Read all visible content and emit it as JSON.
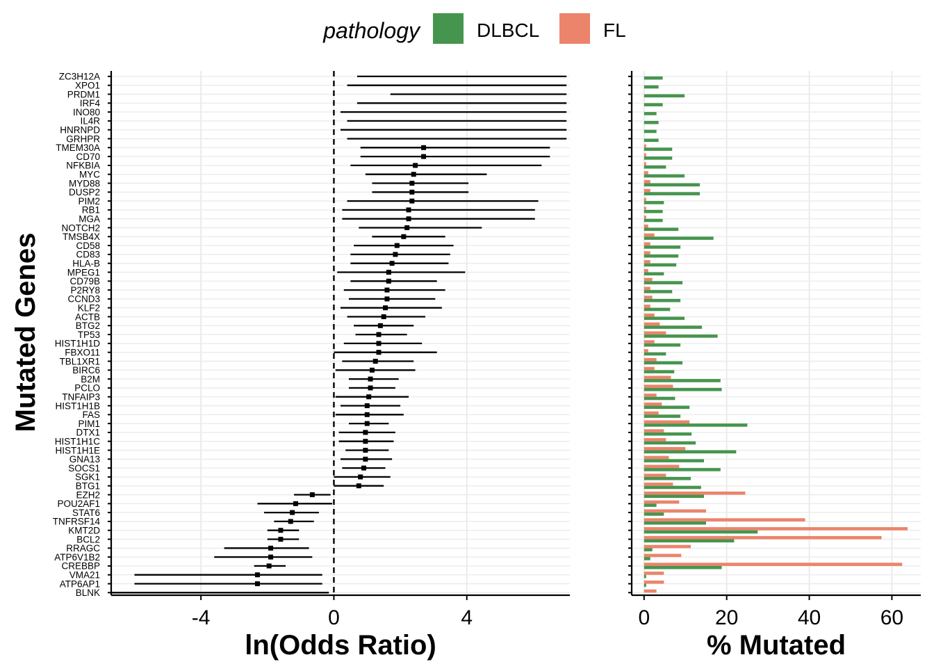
{
  "legend": {
    "title": "pathology",
    "items": [
      {
        "label": "DLBCL",
        "color": "#46954E"
      },
      {
        "label": "FL",
        "color": "#EB846B"
      }
    ]
  },
  "chart_data": [
    {
      "type": "forest",
      "xlabel": "ln(Odds Ratio)",
      "ylabel": "Mutated Genes",
      "xlim": [
        -6.7,
        7.1
      ],
      "xticks": [
        -4,
        0,
        4
      ],
      "xtick_labels": [
        "-4",
        "0",
        "4"
      ],
      "reference_line": 0,
      "genes": [
        "ZC3H12A",
        "XPO1",
        "PRDM1",
        "IRF4",
        "INO80",
        "IL4R",
        "HNRNPD",
        "GRHPR",
        "TMEM30A",
        "CD70",
        "NFKBIA",
        "MYC",
        "MYD88",
        "DUSP2",
        "PIM2",
        "RB1",
        "MGA",
        "NOTCH2",
        "TMSB4X",
        "CD58",
        "CD83",
        "HLA-B",
        "MPEG1",
        "CD79B",
        "P2RY8",
        "CCND3",
        "KLF2",
        "ACTB",
        "BTG2",
        "TP53",
        "HIST1H1D",
        "FBXO11",
        "TBL1XR1",
        "BIRC6",
        "B2M",
        "PCLO",
        "TNFAIP3",
        "HIST1H1B",
        "FAS",
        "PIM1",
        "DTX1",
        "HIST1H1C",
        "HIST1H1E",
        "GNA13",
        "SOCS1",
        "SGK1",
        "BTG1",
        "EZH2",
        "POU2AF1",
        "STAT6",
        "TNFRSF14",
        "KMT2D",
        "BCL2",
        "RRAGC",
        "ATP6V1B2",
        "CREBBP",
        "VMA21",
        "ATP6AP1",
        "BLNK"
      ],
      "estimate": [
        null,
        null,
        null,
        null,
        null,
        null,
        null,
        null,
        2.7,
        2.7,
        2.45,
        2.4,
        2.35,
        2.35,
        2.35,
        2.25,
        2.25,
        2.2,
        2.1,
        1.9,
        1.85,
        1.75,
        1.65,
        1.65,
        1.6,
        1.6,
        1.55,
        1.5,
        1.4,
        1.35,
        1.35,
        1.35,
        1.25,
        1.15,
        1.1,
        1.1,
        1.05,
        1.0,
        1.0,
        1.0,
        0.95,
        0.95,
        0.95,
        0.95,
        0.9,
        0.8,
        0.75,
        -0.65,
        -1.15,
        -1.25,
        -1.3,
        -1.6,
        -1.6,
        -1.9,
        -1.9,
        -1.95,
        -2.3,
        -2.3,
        null
      ],
      "ci_low": [
        0.7,
        0.4,
        1.7,
        0.7,
        0.2,
        0.4,
        0.2,
        0.4,
        0.8,
        0.8,
        0.5,
        0.95,
        1.15,
        1.15,
        0.4,
        0.25,
        0.25,
        0.75,
        1.15,
        0.6,
        0.5,
        0.5,
        0.1,
        0.5,
        0.3,
        0.45,
        0.2,
        0.4,
        0.6,
        0.65,
        0.3,
        0.0,
        0.25,
        0.05,
        0.45,
        0.45,
        0.05,
        0.2,
        0.05,
        0.45,
        0.15,
        0.15,
        0.35,
        0.2,
        0.25,
        0.0,
        0.0,
        -1.2,
        -2.3,
        -2.1,
        -1.8,
        -2.0,
        -2.0,
        -3.3,
        -3.6,
        -2.4,
        -6.0,
        -6.0,
        -6.7
      ],
      "ci_high": [
        7.0,
        7.0,
        7.0,
        7.0,
        7.0,
        7.0,
        7.0,
        7.0,
        6.5,
        6.5,
        6.25,
        4.6,
        4.05,
        4.05,
        6.15,
        6.05,
        6.05,
        4.45,
        3.35,
        3.6,
        3.5,
        3.45,
        3.95,
        3.1,
        3.35,
        3.05,
        3.25,
        2.75,
        2.4,
        2.2,
        2.65,
        3.1,
        2.4,
        2.45,
        1.95,
        1.85,
        2.25,
        2.0,
        2.1,
        1.65,
        1.85,
        1.8,
        1.65,
        1.75,
        1.55,
        1.7,
        1.5,
        -0.1,
        -0.05,
        -0.45,
        -0.6,
        -1.05,
        -1.05,
        -0.75,
        -0.65,
        -1.45,
        -0.35,
        -0.35,
        -0.15
      ]
    },
    {
      "type": "bar",
      "orientation": "horizontal",
      "xlabel": "% Mutated",
      "xlim": [
        -3,
        67
      ],
      "xticks": [
        0,
        20,
        40,
        60
      ],
      "xtick_labels": [
        "0",
        "20",
        "40",
        "60"
      ],
      "categories": [
        "ZC3H12A",
        "XPO1",
        "PRDM1",
        "IRF4",
        "INO80",
        "IL4R",
        "HNRNPD",
        "GRHPR",
        "TMEM30A",
        "CD70",
        "NFKBIA",
        "MYC",
        "MYD88",
        "DUSP2",
        "PIM2",
        "RB1",
        "MGA",
        "NOTCH2",
        "TMSB4X",
        "CD58",
        "CD83",
        "HLA-B",
        "MPEG1",
        "CD79B",
        "P2RY8",
        "CCND3",
        "KLF2",
        "ACTB",
        "BTG2",
        "TP53",
        "HIST1H1D",
        "FBXO11",
        "TBL1XR1",
        "BIRC6",
        "B2M",
        "PCLO",
        "TNFAIP3",
        "HIST1H1B",
        "FAS",
        "PIM1",
        "DTX1",
        "HIST1H1C",
        "HIST1H1E",
        "GNA13",
        "SOCS1",
        "SGK1",
        "BTG1",
        "EZH2",
        "POU2AF1",
        "STAT6",
        "TNFRSF14",
        "KMT2D",
        "BCL2",
        "RRAGC",
        "ATP6V1B2",
        "CREBBP",
        "VMA21",
        "ATP6AP1",
        "BLNK"
      ],
      "series": [
        {
          "name": "DLBCL",
          "color": "#46954E",
          "values": [
            4.5,
            3.5,
            9.8,
            4.5,
            3.0,
            3.5,
            3.0,
            3.5,
            6.8,
            6.8,
            5.3,
            9.8,
            13.5,
            13.5,
            4.8,
            4.5,
            4.5,
            8.3,
            16.8,
            8.8,
            8.3,
            7.8,
            4.8,
            9.3,
            6.8,
            8.8,
            6.3,
            9.8,
            14.0,
            17.8,
            8.8,
            5.3,
            9.3,
            7.3,
            18.5,
            18.8,
            7.5,
            11.0,
            8.8,
            25.0,
            11.5,
            12.5,
            22.3,
            14.5,
            18.5,
            11.3,
            13.8,
            14.5,
            3.0,
            4.8,
            15.0,
            27.5,
            21.8,
            2.0,
            1.5,
            18.8,
            0.5,
            0.5,
            0.0
          ]
        },
        {
          "name": "FL",
          "color": "#EB846B",
          "values": [
            0,
            0,
            0,
            0,
            0,
            0,
            0,
            0,
            0.5,
            0.5,
            0.5,
            1.0,
            1.5,
            1.5,
            0.5,
            0.5,
            0.5,
            1.0,
            2.5,
            1.5,
            1.5,
            1.5,
            1.0,
            2.0,
            1.5,
            2.0,
            1.5,
            2.5,
            3.8,
            5.3,
            2.5,
            1.0,
            3.0,
            2.5,
            6.5,
            7.0,
            3.0,
            4.3,
            3.5,
            11.0,
            4.8,
            5.3,
            10.0,
            6.0,
            8.5,
            5.3,
            7.0,
            24.5,
            8.5,
            15.0,
            39.0,
            63.8,
            57.5,
            11.3,
            9.0,
            62.5,
            4.8,
            4.8,
            3.0
          ]
        }
      ]
    }
  ]
}
